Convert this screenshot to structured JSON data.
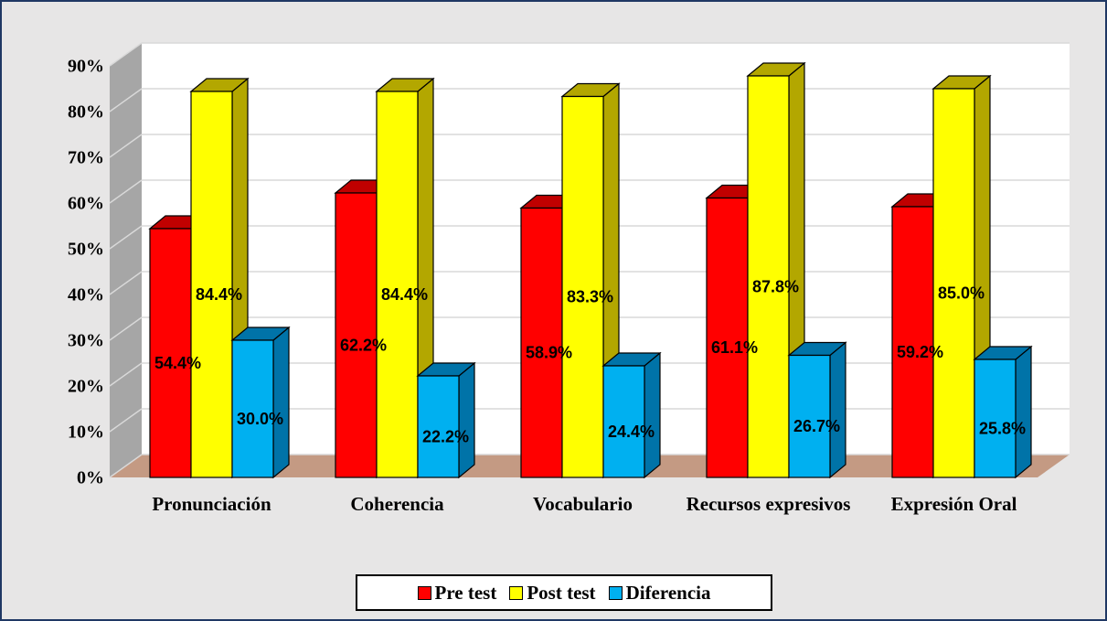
{
  "chart_data": {
    "type": "bar3d",
    "categories": [
      "Pronunciación",
      "Coherencia",
      "Vocabulario",
      "Recursos expresivos",
      "Expresión Oral"
    ],
    "series": [
      {
        "name": "Pre test",
        "color": "#ff0000",
        "values": [
          54.4,
          62.2,
          58.9,
          61.1,
          59.2
        ],
        "value_labels": [
          "54.4%",
          "62.2%",
          "58.9%",
          "61.1%",
          "59.2%"
        ]
      },
      {
        "name": "Post test",
        "color": "#ffff00",
        "values": [
          84.4,
          84.4,
          83.3,
          87.8,
          85.0
        ],
        "value_labels": [
          "84.4%",
          "84.4%",
          "83.3%",
          "87.8%",
          "85.0%"
        ]
      },
      {
        "name": "Diferencia",
        "color": "#00b0f0",
        "values": [
          30.0,
          22.2,
          24.4,
          26.7,
          25.8
        ],
        "value_labels": [
          "30.0%",
          "22.2%",
          "24.4%",
          "26.7%",
          "25.8%"
        ]
      }
    ],
    "ylim": [
      0,
      90
    ],
    "yticks": [
      {
        "value": 0,
        "label": "0%"
      },
      {
        "value": 10,
        "label": "10%"
      },
      {
        "value": 20,
        "label": "20%"
      },
      {
        "value": 30,
        "label": "30%"
      },
      {
        "value": 40,
        "label": "40%"
      },
      {
        "value": 50,
        "label": "50%"
      },
      {
        "value": 60,
        "label": "60%"
      },
      {
        "value": 70,
        "label": "70%"
      },
      {
        "value": 80,
        "label": "80%"
      },
      {
        "value": 90,
        "label": "90%"
      }
    ],
    "grid": true,
    "legend": "bottom"
  }
}
